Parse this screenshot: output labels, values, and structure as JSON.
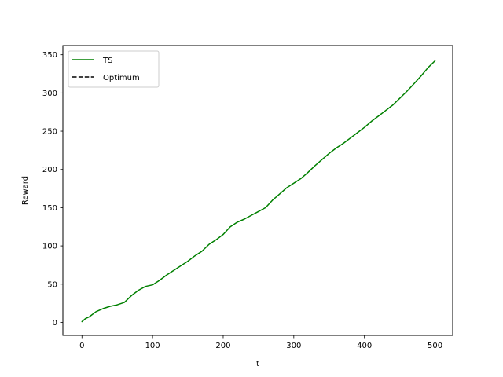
{
  "chart_data": {
    "type": "line",
    "title": "",
    "xlabel": "t",
    "ylabel": "Reward",
    "xlim": [
      -27,
      525
    ],
    "ylim": [
      -17,
      362
    ],
    "xticks": [
      0,
      100,
      200,
      300,
      400,
      500
    ],
    "yticks": [
      0,
      50,
      100,
      150,
      200,
      250,
      300,
      350
    ],
    "grid": false,
    "legend_position": "upper left",
    "series": [
      {
        "name": "TS",
        "color": "#008000",
        "style": "solid",
        "x": [
          0,
          5,
          10,
          20,
          30,
          40,
          50,
          60,
          70,
          80,
          90,
          100,
          110,
          120,
          130,
          140,
          150,
          160,
          170,
          180,
          190,
          200,
          210,
          220,
          230,
          240,
          250,
          260,
          270,
          280,
          290,
          300,
          310,
          320,
          330,
          340,
          350,
          360,
          370,
          380,
          390,
          400,
          410,
          420,
          430,
          440,
          450,
          460,
          470,
          480,
          490,
          500
        ],
        "y": [
          1,
          5,
          7,
          14,
          18,
          21,
          23,
          26,
          35,
          42,
          47,
          49,
          55,
          62,
          68,
          74,
          80,
          87,
          93,
          102,
          108,
          115,
          125,
          131,
          135,
          140,
          145,
          150,
          160,
          168,
          176,
          182,
          188,
          196,
          205,
          213,
          221,
          228,
          234,
          241,
          248,
          255,
          263,
          270,
          277,
          284,
          293,
          302,
          312,
          322,
          333,
          342
        ]
      },
      {
        "name": "Optimum",
        "color": "#000000",
        "style": "dashed",
        "x": [],
        "y": []
      }
    ]
  }
}
